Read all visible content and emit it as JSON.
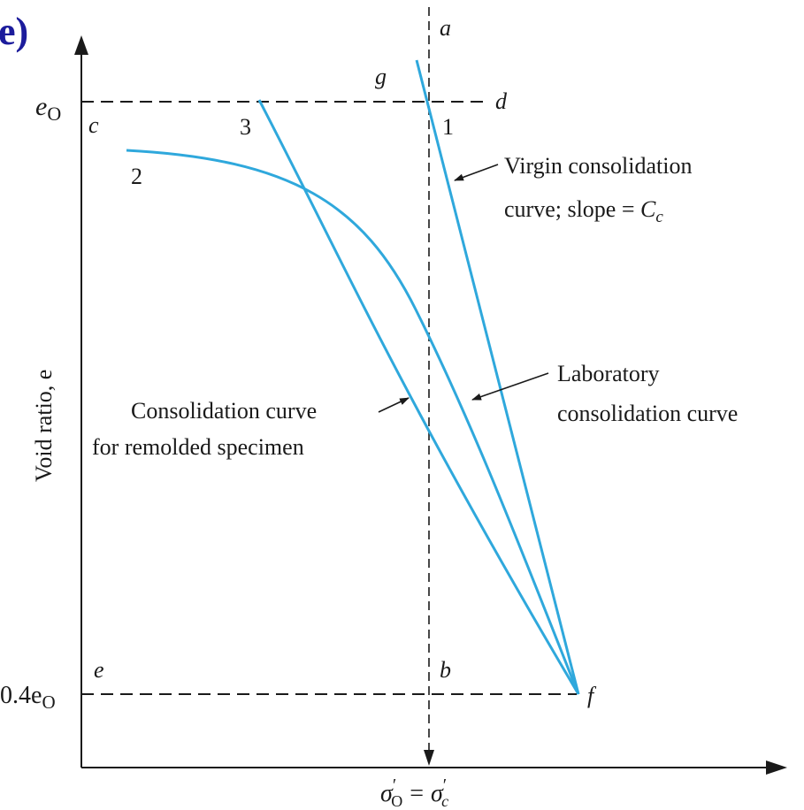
{
  "panel_label": "e)",
  "y_axis_label": "Void ratio, e",
  "x_axis_label": {
    "main": "σ",
    "sub_o": "O",
    "eq": "=",
    "sub_c": "c"
  },
  "y_ticks": {
    "top": {
      "main": "e",
      "sub": "O"
    },
    "bottom": {
      "prefix": "0.4e",
      "sub": "O"
    }
  },
  "points": {
    "a": "a",
    "b": "b",
    "c": "c",
    "d": "d",
    "e": "e",
    "f": "f",
    "g": "g",
    "n1": "1",
    "n2": "2",
    "n3": "3"
  },
  "annotations": {
    "virgin_line1": "Virgin consolidation",
    "virgin_line2": "curve; slope = ",
    "virgin_slope": {
      "main": "C",
      "sub": "c"
    },
    "lab_line1": "Laboratory",
    "lab_line2": "consolidation curve",
    "remold_line1": "Consolidation curve",
    "remold_line2": "for remolded specimen"
  },
  "colors": {
    "curve": "#2fa8dc",
    "panel_label": "#1c1c9c",
    "ink": "#1a1a1a"
  }
}
